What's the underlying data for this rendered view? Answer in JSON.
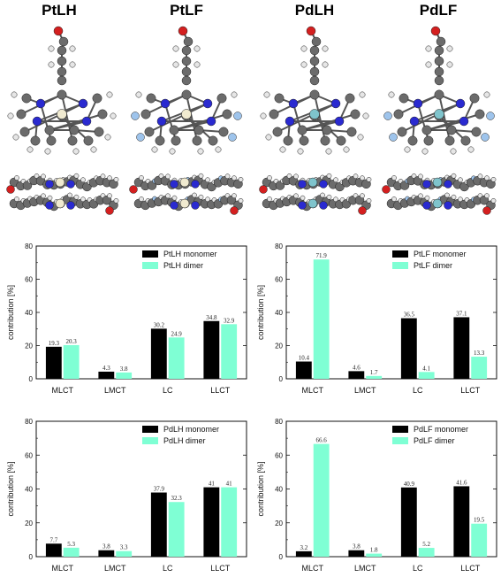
{
  "complexes": [
    {
      "label": "PtLH",
      "metal": "Pt"
    },
    {
      "label": "PtLF",
      "metal": "Pt"
    },
    {
      "label": "PdLH",
      "metal": "Pd"
    },
    {
      "label": "PdLF",
      "metal": "Pd"
    }
  ],
  "colors": {
    "monomer": "#000000",
    "dimer": "#7fffd4",
    "carbon": "#6b6b6b",
    "nitrogen": "#2a2ad0",
    "oxygen": "#d41f1f",
    "hydrogen": "#e6e6e6",
    "fluorine": "#9ec4ec",
    "platinum": "#f0ead0",
    "palladium": "#7fc4cc"
  },
  "chart_data": [
    {
      "type": "bar",
      "categories": [
        "MLCT",
        "LMCT",
        "LC",
        "LLCT"
      ],
      "series": [
        {
          "name": "PtLH monomer",
          "values": [
            19.3,
            4.3,
            30.2,
            34.8
          ],
          "labels": [
            "19.3",
            "4.3",
            "30.2",
            "34.8"
          ]
        },
        {
          "name": "PtLH dimer",
          "values": [
            20.3,
            3.8,
            24.9,
            32.9
          ],
          "labels": [
            "20.3",
            "3.8",
            "24.9",
            "32.9"
          ]
        }
      ],
      "ylabel": "contribution [%]",
      "ylim": [
        0,
        80
      ],
      "yticks": [
        "0",
        "20",
        "40",
        "60",
        "80"
      ],
      "legend": "top-right"
    },
    {
      "type": "bar",
      "categories": [
        "MLCT",
        "LMCT",
        "LC",
        "LLCT"
      ],
      "series": [
        {
          "name": "PtLF monomer",
          "values": [
            10.4,
            4.6,
            36.5,
            37.1
          ],
          "labels": [
            "10.4",
            "4.6",
            "36.5",
            "37.1"
          ]
        },
        {
          "name": "PtLF dimer",
          "values": [
            71.9,
            1.7,
            4.1,
            13.3
          ],
          "labels": [
            "71.9",
            "1.7",
            "4.1",
            "13.3"
          ]
        }
      ],
      "ylabel": "contribution [%]",
      "ylim": [
        0,
        80
      ],
      "yticks": [
        "0",
        "20",
        "40",
        "60",
        "80"
      ],
      "legend": "top-right"
    },
    {
      "type": "bar",
      "categories": [
        "MLCT",
        "LMCT",
        "LC",
        "LLCT"
      ],
      "series": [
        {
          "name": "PdLH monomer",
          "values": [
            7.7,
            3.8,
            37.9,
            41
          ],
          "labels": [
            "7.7",
            "3.8",
            "37.9",
            "41"
          ]
        },
        {
          "name": "PdLH dimer",
          "values": [
            5.3,
            3.3,
            32.3,
            41
          ],
          "labels": [
            "5.3",
            "3.3",
            "32.3",
            "41"
          ]
        }
      ],
      "ylabel": "contribution [%]",
      "ylim": [
        0,
        80
      ],
      "yticks": [
        "0",
        "20",
        "40",
        "60",
        "80"
      ],
      "legend": "top-right"
    },
    {
      "type": "bar",
      "categories": [
        "MLCT",
        "LMCT",
        "LC",
        "LLCT"
      ],
      "series": [
        {
          "name": "PdLF monomer",
          "values": [
            3.2,
            3.8,
            40.9,
            41.6
          ],
          "labels": [
            "3.2",
            "3.8",
            "40.9",
            "41.6"
          ]
        },
        {
          "name": "PdLF dimer",
          "values": [
            66.6,
            1.8,
            5.2,
            19.5
          ],
          "labels": [
            "66.6",
            "1.8",
            "5.2",
            "19.5"
          ]
        }
      ],
      "ylabel": "contribution [%]",
      "ylim": [
        0,
        80
      ],
      "yticks": [
        "0",
        "20",
        "40",
        "60",
        "80"
      ],
      "legend": "top-right"
    }
  ]
}
